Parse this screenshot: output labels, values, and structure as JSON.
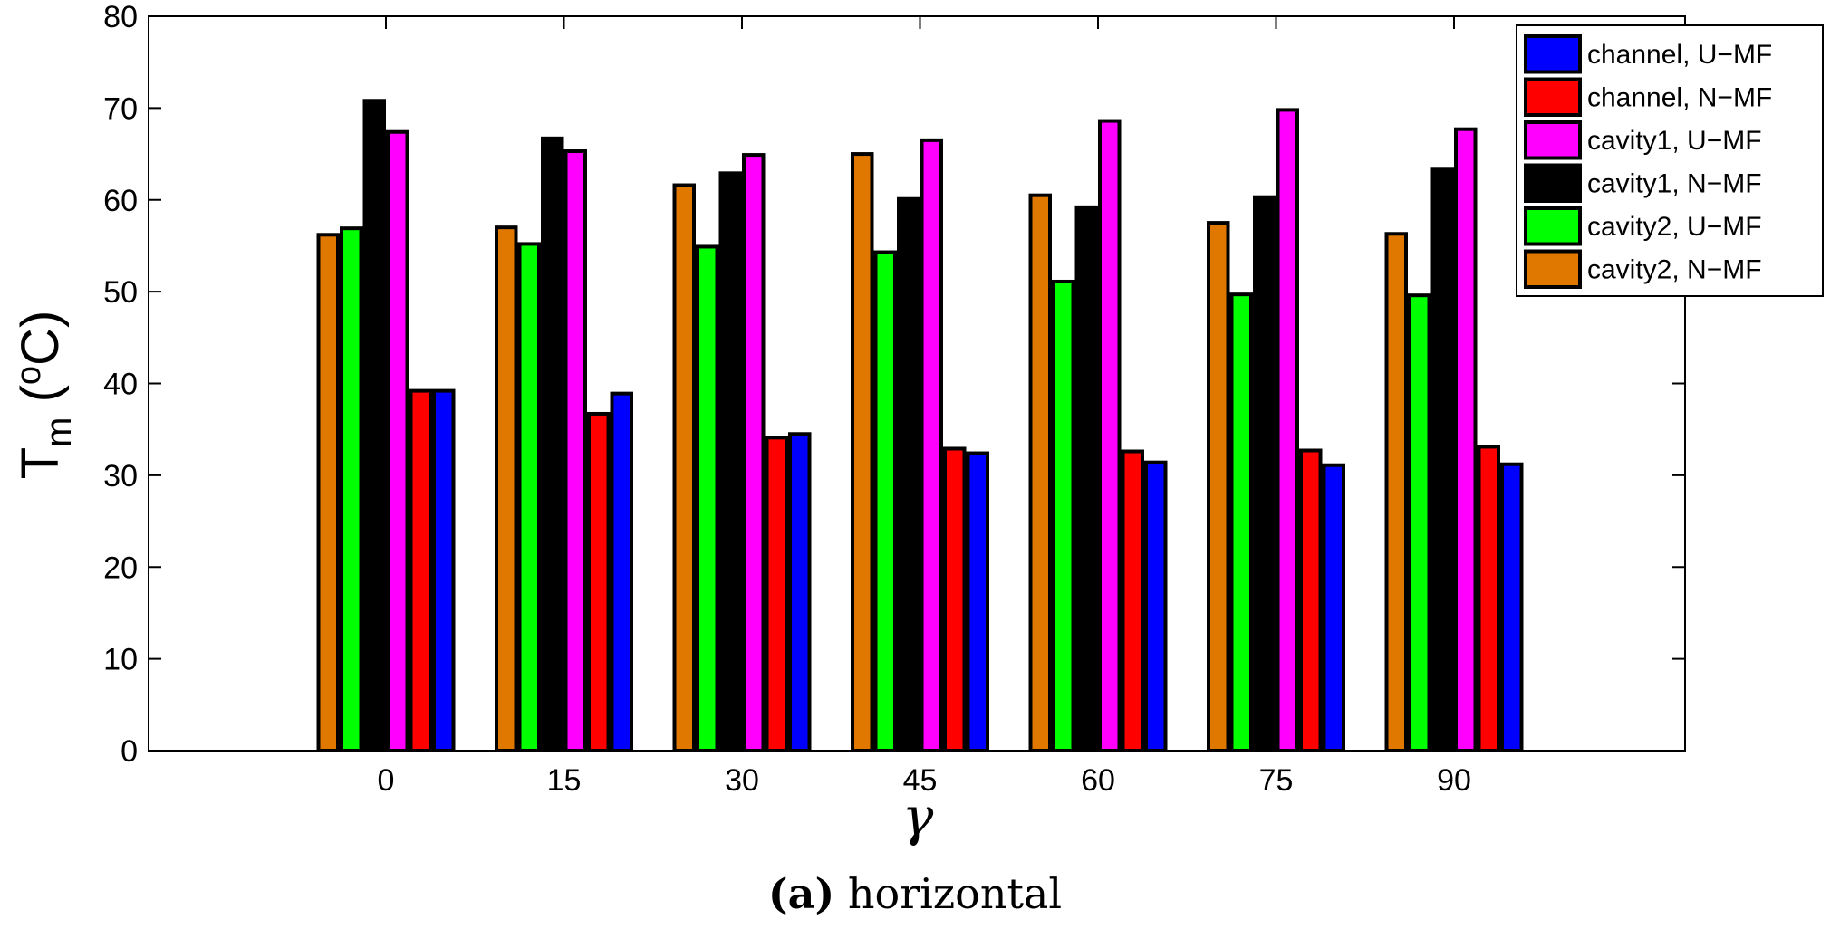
{
  "chart_data": {
    "type": "bar",
    "categories": [
      "0",
      "15",
      "30",
      "45",
      "60",
      "75",
      "90"
    ],
    "xlabel": "γ",
    "ylabel_main": "T",
    "ylabel_sub": "m",
    "ylabel_unit_open": " (",
    "ylabel_unit_sup": "o",
    "ylabel_unit_close": "C)",
    "ylim": [
      0,
      80
    ],
    "yticks": [
      0,
      10,
      20,
      30,
      40,
      50,
      60,
      70,
      80
    ],
    "legend_position": "top-right",
    "legend": [
      {
        "label": "channel, U−MF",
        "color": "#0000ff"
      },
      {
        "label": "channel, N−MF",
        "color": "#ff0000"
      },
      {
        "label": "cavity1, U−MF",
        "color": "#ff00ff"
      },
      {
        "label": "cavity1, N−MF",
        "color": "#000000"
      },
      {
        "label": "cavity2, U−MF",
        "color": "#00ff00"
      },
      {
        "label": "cavity2, N−MF",
        "color": "#e07800"
      }
    ],
    "series_order": [
      "cavity2, N−MF",
      "cavity2, U−MF",
      "cavity1, N−MF",
      "cavity1, U−MF",
      "channel, N−MF",
      "channel, U−MF"
    ],
    "series": [
      {
        "name": "cavity2, N−MF",
        "color": "#e07800",
        "values": [
          56.2,
          57.0,
          61.6,
          65.0,
          60.5,
          57.5,
          56.3
        ]
      },
      {
        "name": "cavity2, U−MF",
        "color": "#00ff00",
        "values": [
          56.9,
          55.2,
          54.9,
          54.3,
          51.1,
          49.7,
          49.6
        ]
      },
      {
        "name": "cavity1, N−MF",
        "color": "#000000",
        "values": [
          70.8,
          66.7,
          62.9,
          60.1,
          59.2,
          60.3,
          63.4
        ]
      },
      {
        "name": "cavity1, U−MF",
        "color": "#ff00ff",
        "values": [
          67.4,
          65.3,
          64.9,
          66.5,
          68.6,
          69.8,
          67.7
        ]
      },
      {
        "name": "channel, N−MF",
        "color": "#ff0000",
        "values": [
          39.2,
          36.7,
          34.1,
          32.9,
          32.6,
          32.7,
          33.1
        ]
      },
      {
        "name": "channel, U−MF",
        "color": "#0000ff",
        "values": [
          39.2,
          38.9,
          34.5,
          32.4,
          31.4,
          31.1,
          31.2
        ]
      }
    ]
  },
  "caption": {
    "label": "(a)",
    "text": " horizontal"
  }
}
